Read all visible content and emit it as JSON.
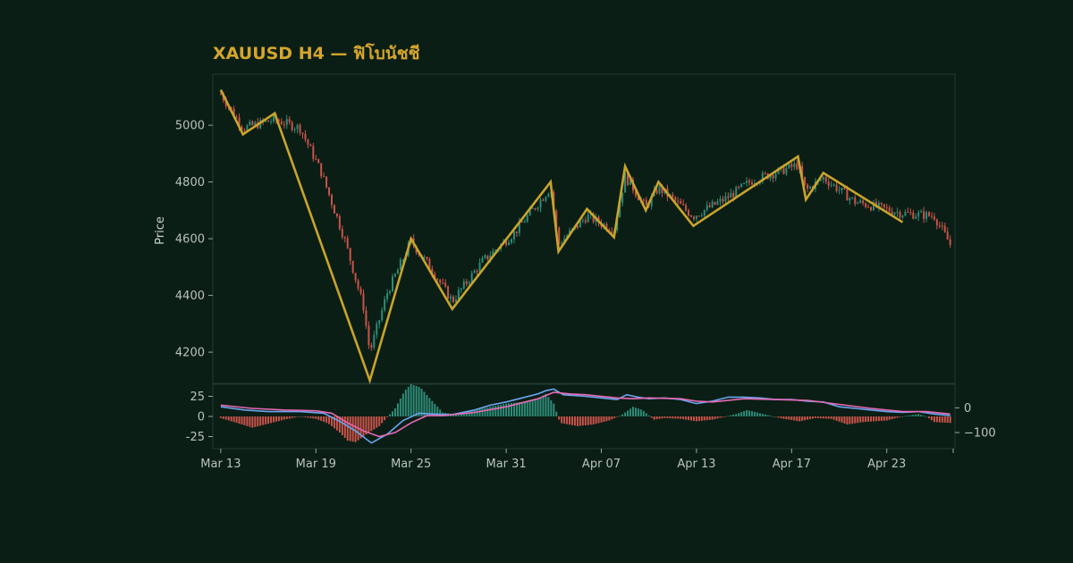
{
  "chart_data": {
    "type": "candlestick",
    "title": "XAUUSD H4 — ฟิโบนัชชี",
    "ylabel": "Price",
    "ylim": [
      4090,
      5180
    ],
    "yticks": [
      4200,
      4400,
      4600,
      4800,
      5000
    ],
    "x_tick_labels": [
      "Mar 13",
      "Mar 19",
      "Mar 25",
      "Mar 31",
      "Apr 07",
      "Apr 13",
      "Apr 17",
      "Apr 23"
    ],
    "x_tick_days": [
      0,
      6,
      12,
      18,
      24,
      30,
      36,
      42
    ],
    "x_range_days": [
      -0.5,
      46.3
    ],
    "grid": false,
    "colors": {
      "up": "#2e8b78",
      "down": "#c9534a",
      "zigzag": "#c9a42c",
      "macd_line": "#6aa6f0",
      "signal_line": "#e86ab4",
      "panel_border": "#1f3a33"
    },
    "zigzag": [
      {
        "day": 0.0,
        "price": 5125
      },
      {
        "day": 1.4,
        "price": 4968
      },
      {
        "day": 3.4,
        "price": 5042
      },
      {
        "day": 9.4,
        "price": 4100
      },
      {
        "day": 12.0,
        "price": 4600
      },
      {
        "day": 14.6,
        "price": 4352
      },
      {
        "day": 20.8,
        "price": 4800
      },
      {
        "day": 21.3,
        "price": 4555
      },
      {
        "day": 23.1,
        "price": 4705
      },
      {
        "day": 24.8,
        "price": 4605
      },
      {
        "day": 25.5,
        "price": 4855
      },
      {
        "day": 26.8,
        "price": 4700
      },
      {
        "day": 27.6,
        "price": 4800
      },
      {
        "day": 29.8,
        "price": 4645
      },
      {
        "day": 36.4,
        "price": 4890
      },
      {
        "day": 36.9,
        "price": 4738
      },
      {
        "day": 38.0,
        "price": 4832
      },
      {
        "day": 43.0,
        "price": 4658
      }
    ],
    "price_path": [
      [
        0,
        5110
      ],
      [
        1.4,
        4990
      ],
      [
        3.4,
        5020
      ],
      [
        5.0,
        4990
      ],
      [
        6.3,
        4840
      ],
      [
        7.8,
        4600
      ],
      [
        9.0,
        4360
      ],
      [
        9.4,
        4200
      ],
      [
        10.5,
        4410
      ],
      [
        12.0,
        4590
      ],
      [
        13.2,
        4500
      ],
      [
        14.6,
        4380
      ],
      [
        16.5,
        4520
      ],
      [
        18.5,
        4620
      ],
      [
        20.8,
        4780
      ],
      [
        21.3,
        4580
      ],
      [
        23.1,
        4680
      ],
      [
        24.8,
        4630
      ],
      [
        25.5,
        4820
      ],
      [
        26.8,
        4710
      ],
      [
        27.6,
        4780
      ],
      [
        29.8,
        4680
      ],
      [
        31.8,
        4740
      ],
      [
        33.5,
        4805
      ],
      [
        36.4,
        4860
      ],
      [
        36.9,
        4770
      ],
      [
        38.0,
        4815
      ],
      [
        40.0,
        4730
      ],
      [
        43.0,
        4690
      ],
      [
        45.0,
        4680
      ],
      [
        46.0,
        4580
      ]
    ],
    "macd": {
      "yticks": [
        -25,
        0,
        25
      ],
      "ylim": [
        -40,
        40
      ],
      "secondary_yticks": [
        0,
        -100
      ],
      "secondary_ylim": [
        -165,
        95
      ],
      "histogram": [
        [
          0,
          -2
        ],
        [
          1,
          -8
        ],
        [
          2,
          -14
        ],
        [
          3,
          -9
        ],
        [
          4,
          -4
        ],
        [
          5,
          0
        ],
        [
          6,
          -3
        ],
        [
          6.8,
          -9
        ],
        [
          7.5,
          -20
        ],
        [
          8.0,
          -30
        ],
        [
          8.5,
          -32
        ],
        [
          9.2,
          -22
        ],
        [
          10.0,
          -12
        ],
        [
          11.0,
          10
        ],
        [
          11.6,
          32
        ],
        [
          12.0,
          40
        ],
        [
          12.6,
          36
        ],
        [
          13.2,
          22
        ],
        [
          14.0,
          5
        ],
        [
          15.0,
          2
        ],
        [
          16.0,
          8
        ],
        [
          17.0,
          12
        ],
        [
          18.0,
          16
        ],
        [
          19.0,
          18
        ],
        [
          20.0,
          22
        ],
        [
          20.5,
          28
        ],
        [
          21.0,
          16
        ],
        [
          21.4,
          -8
        ],
        [
          22.5,
          -12
        ],
        [
          23.5,
          -10
        ],
        [
          24.5,
          -5
        ],
        [
          25.3,
          2
        ],
        [
          26.0,
          12
        ],
        [
          26.6,
          8
        ],
        [
          27.3,
          -4
        ],
        [
          28.0,
          -2
        ],
        [
          29.0,
          -3
        ],
        [
          30.0,
          -6
        ],
        [
          31.0,
          -4
        ],
        [
          32.5,
          3
        ],
        [
          33.2,
          8
        ],
        [
          34.0,
          4
        ],
        [
          35.5,
          -3
        ],
        [
          36.5,
          -6
        ],
        [
          37.5,
          -2
        ],
        [
          38.5,
          -3
        ],
        [
          39.5,
          -10
        ],
        [
          40.5,
          -7
        ],
        [
          42.0,
          -5
        ],
        [
          43.0,
          0
        ],
        [
          44.0,
          3
        ],
        [
          44.5,
          0
        ],
        [
          45.0,
          -7
        ],
        [
          46.0,
          -8
        ]
      ],
      "macd_line": [
        [
          0,
          12
        ],
        [
          1.5,
          8
        ],
        [
          3,
          6
        ],
        [
          5,
          6
        ],
        [
          6.5,
          4
        ],
        [
          7.5,
          -6
        ],
        [
          8.5,
          -18
        ],
        [
          9.5,
          -33
        ],
        [
          10.5,
          -22
        ],
        [
          11.5,
          -5
        ],
        [
          12.5,
          4
        ],
        [
          13.5,
          3
        ],
        [
          14.5,
          2
        ],
        [
          16,
          8
        ],
        [
          17,
          14
        ],
        [
          18,
          18
        ],
        [
          19,
          23
        ],
        [
          20,
          28
        ],
        [
          20.5,
          32
        ],
        [
          21,
          34
        ],
        [
          21.6,
          27
        ],
        [
          23,
          25
        ],
        [
          24,
          23
        ],
        [
          25,
          21
        ],
        [
          25.6,
          27
        ],
        [
          26.3,
          24
        ],
        [
          27,
          22
        ],
        [
          28,
          23
        ],
        [
          29,
          21
        ],
        [
          30,
          16
        ],
        [
          31,
          19
        ],
        [
          32,
          24
        ],
        [
          33,
          24
        ],
        [
          34,
          23
        ],
        [
          35,
          21
        ],
        [
          36,
          21
        ],
        [
          37,
          19
        ],
        [
          38,
          18
        ],
        [
          39,
          12
        ],
        [
          40,
          10
        ],
        [
          41,
          8
        ],
        [
          42,
          6
        ],
        [
          43,
          5
        ],
        [
          44,
          6
        ],
        [
          45,
          3
        ],
        [
          46,
          1
        ]
      ],
      "signal_line": [
        [
          0,
          14
        ],
        [
          2,
          10
        ],
        [
          4,
          8
        ],
        [
          6,
          7
        ],
        [
          7,
          4
        ],
        [
          8,
          -8
        ],
        [
          9,
          -18
        ],
        [
          10,
          -25
        ],
        [
          11,
          -20
        ],
        [
          12,
          -8
        ],
        [
          13,
          1
        ],
        [
          14,
          1
        ],
        [
          16,
          5
        ],
        [
          18,
          12
        ],
        [
          20,
          22
        ],
        [
          21,
          30
        ],
        [
          22,
          28
        ],
        [
          23,
          27
        ],
        [
          25,
          23
        ],
        [
          26,
          22
        ],
        [
          27,
          23
        ],
        [
          29,
          22
        ],
        [
          30,
          19
        ],
        [
          31,
          18
        ],
        [
          33,
          22
        ],
        [
          35,
          21
        ],
        [
          37,
          20
        ],
        [
          39,
          15
        ],
        [
          41,
          10
        ],
        [
          43,
          6
        ],
        [
          44.5,
          6
        ],
        [
          46,
          3
        ]
      ]
    }
  }
}
